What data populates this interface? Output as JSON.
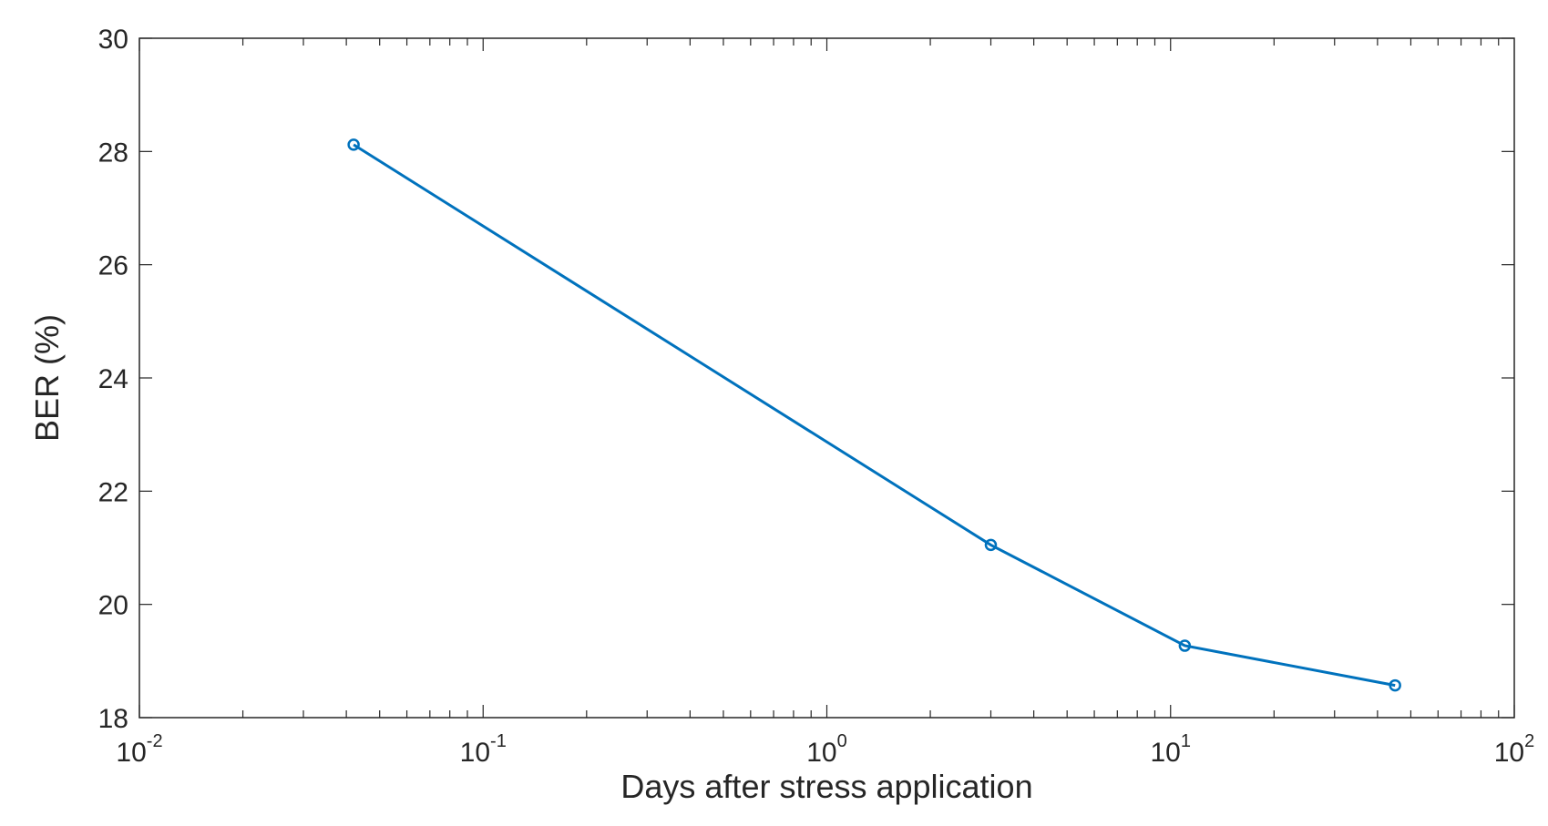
{
  "chart_data": {
    "type": "line",
    "xscale": "log",
    "xlim": [
      0.01,
      100
    ],
    "ylim": [
      18,
      30
    ],
    "xlabel": "Days after stress application",
    "ylabel": "BER (%)",
    "title": "",
    "grid": false,
    "x_ticks": [
      {
        "base": "10",
        "exp": "-2",
        "value": 0.01
      },
      {
        "base": "10",
        "exp": "-1",
        "value": 0.1
      },
      {
        "base": "10",
        "exp": "0",
        "value": 1
      },
      {
        "base": "10",
        "exp": "1",
        "value": 10
      },
      {
        "base": "10",
        "exp": "2",
        "value": 100
      }
    ],
    "y_ticks": [
      "18",
      "20",
      "22",
      "24",
      "26",
      "28",
      "30"
    ],
    "series": [
      {
        "color": "#0072BD",
        "marker": "circle",
        "x": [
          0.042,
          3,
          11,
          45
        ],
        "y": [
          28.12,
          21.05,
          19.27,
          18.57
        ]
      }
    ]
  }
}
